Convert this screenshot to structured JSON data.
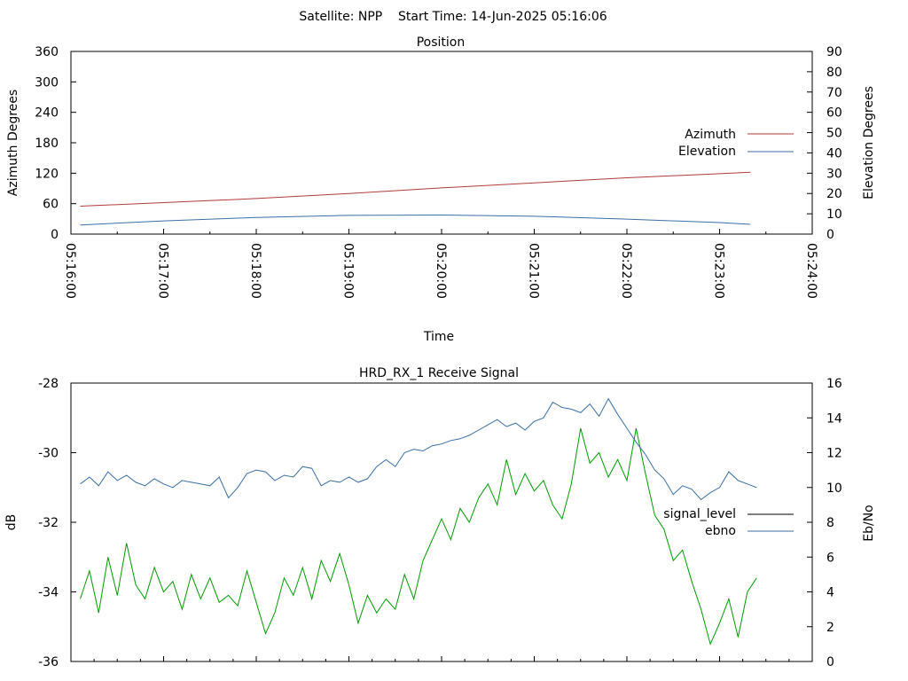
{
  "header": {
    "text": "Satellite: NPP    Start Time: 14-Jun-2025 05:16:06"
  },
  "chart_data": [
    {
      "type": "line",
      "title": "Position",
      "xlabel": "Time",
      "ylabel": "Azimuth Degrees",
      "ylabel_right": "Elevation Degrees",
      "ylim": [
        0,
        360
      ],
      "ylim_right": [
        0,
        90
      ],
      "yticks": [
        "360",
        "300",
        "240",
        "180",
        "120",
        "60",
        "0"
      ],
      "yticks_right": [
        "90",
        "80",
        "70",
        "60",
        "50",
        "40",
        "30",
        "20",
        "10",
        "0"
      ],
      "xlim": [
        "05:16:00",
        "05:24:00"
      ],
      "xticks": [
        "05:16:00",
        "05:17:00",
        "05:18:00",
        "05:19:00",
        "05:20:00",
        "05:21:00",
        "05:22:00",
        "05:23:00",
        "05:24:00"
      ],
      "legend_position": "right",
      "grid": false,
      "series": [
        {
          "name": "Azimuth",
          "axis": "left",
          "color": "#b03a3a",
          "x": [
            "05:16:06",
            "05:17:00",
            "05:18:00",
            "05:19:00",
            "05:20:00",
            "05:21:00",
            "05:22:00",
            "05:23:00",
            "05:23:20"
          ],
          "values": [
            55,
            62,
            70,
            80,
            91,
            101,
            111,
            119,
            122
          ]
        },
        {
          "name": "Elevation",
          "axis": "right",
          "color": "#3a6ea5",
          "x": [
            "05:16:06",
            "05:17:00",
            "05:18:00",
            "05:19:00",
            "05:20:00",
            "05:21:00",
            "05:22:00",
            "05:23:00",
            "05:23:20"
          ],
          "values": [
            4.5,
            6.5,
            8.2,
            9.2,
            9.4,
            8.8,
            7.4,
            5.7,
            4.8
          ]
        }
      ]
    },
    {
      "type": "line",
      "title": "HRD_RX_1 Receive Signal",
      "xlabel": "",
      "ylabel": "dB",
      "ylabel_right": "Eb/No",
      "ylim": [
        -36,
        -28
      ],
      "ylim_right": [
        0,
        16
      ],
      "yticks": [
        "-28",
        "-30",
        "-32",
        "-34",
        "-36"
      ],
      "yticks_right": [
        "16",
        "14",
        "12",
        "10",
        "8",
        "6",
        "4",
        "2",
        "0"
      ],
      "xlim": [
        "05:16:00",
        "05:24:00"
      ],
      "legend_position": "right",
      "grid": false,
      "series": [
        {
          "name": "signal_level",
          "axis": "left",
          "color": "#009a00",
          "legend_color": "#000000",
          "x": [
            "05:16:06",
            "05:16:12",
            "05:16:18",
            "05:16:24",
            "05:16:30",
            "05:16:36",
            "05:16:42",
            "05:16:48",
            "05:16:54",
            "05:17:00",
            "05:17:06",
            "05:17:12",
            "05:17:18",
            "05:17:24",
            "05:17:30",
            "05:17:36",
            "05:17:42",
            "05:17:48",
            "05:17:54",
            "05:18:00",
            "05:18:06",
            "05:18:12",
            "05:18:18",
            "05:18:24",
            "05:18:30",
            "05:18:36",
            "05:18:42",
            "05:18:48",
            "05:18:54",
            "05:19:00",
            "05:19:06",
            "05:19:12",
            "05:19:18",
            "05:19:24",
            "05:19:30",
            "05:19:36",
            "05:19:42",
            "05:19:48",
            "05:19:54",
            "05:20:00",
            "05:20:06",
            "05:20:12",
            "05:20:18",
            "05:20:24",
            "05:20:30",
            "05:20:36",
            "05:20:42",
            "05:20:48",
            "05:20:54",
            "05:21:00",
            "05:21:06",
            "05:21:12",
            "05:21:18",
            "05:21:24",
            "05:21:30",
            "05:21:36",
            "05:21:42",
            "05:21:48",
            "05:21:54",
            "05:22:00",
            "05:22:06",
            "05:22:12",
            "05:22:18",
            "05:22:24",
            "05:22:30",
            "05:22:36",
            "05:22:42",
            "05:22:48",
            "05:22:54",
            "05:23:00",
            "05:23:06",
            "05:23:12",
            "05:23:18",
            "05:23:24"
          ],
          "values": [
            -34.2,
            -33.4,
            -34.6,
            -33.0,
            -34.1,
            -32.6,
            -33.8,
            -34.2,
            -33.3,
            -34.0,
            -33.7,
            -34.5,
            -33.5,
            -34.2,
            -33.6,
            -34.3,
            -34.1,
            -34.4,
            -33.4,
            -34.3,
            -35.2,
            -34.6,
            -33.6,
            -34.1,
            -33.3,
            -34.2,
            -33.1,
            -33.7,
            -32.9,
            -33.8,
            -34.9,
            -34.1,
            -34.6,
            -34.2,
            -34.5,
            -33.5,
            -34.2,
            -33.1,
            -32.5,
            -31.9,
            -32.5,
            -31.6,
            -32.0,
            -31.3,
            -30.9,
            -31.5,
            -30.2,
            -31.2,
            -30.6,
            -31.1,
            -30.8,
            -31.5,
            -31.9,
            -30.9,
            -29.3,
            -30.3,
            -30.0,
            -30.7,
            -30.2,
            -30.8,
            -29.3,
            -30.6,
            -31.8,
            -32.2,
            -33.1,
            -32.8,
            -33.7,
            -34.5,
            -35.5,
            -34.9,
            -34.2,
            -35.3,
            -34.0,
            -33.6
          ]
        },
        {
          "name": "ebno",
          "axis": "right",
          "color": "#3a6ea5",
          "x": [
            "05:16:06",
            "05:16:12",
            "05:16:18",
            "05:16:24",
            "05:16:30",
            "05:16:36",
            "05:16:42",
            "05:16:48",
            "05:16:54",
            "05:17:00",
            "05:17:06",
            "05:17:12",
            "05:17:18",
            "05:17:24",
            "05:17:30",
            "05:17:36",
            "05:17:42",
            "05:17:48",
            "05:17:54",
            "05:18:00",
            "05:18:06",
            "05:18:12",
            "05:18:18",
            "05:18:24",
            "05:18:30",
            "05:18:36",
            "05:18:42",
            "05:18:48",
            "05:18:54",
            "05:19:00",
            "05:19:06",
            "05:19:12",
            "05:19:18",
            "05:19:24",
            "05:19:30",
            "05:19:36",
            "05:19:42",
            "05:19:48",
            "05:19:54",
            "05:20:00",
            "05:20:06",
            "05:20:12",
            "05:20:18",
            "05:20:24",
            "05:20:30",
            "05:20:36",
            "05:20:42",
            "05:20:48",
            "05:20:54",
            "05:21:00",
            "05:21:06",
            "05:21:12",
            "05:21:18",
            "05:21:24",
            "05:21:30",
            "05:21:36",
            "05:21:42",
            "05:21:48",
            "05:21:54",
            "05:22:00",
            "05:22:06",
            "05:22:12",
            "05:22:18",
            "05:22:24",
            "05:22:30",
            "05:22:36",
            "05:22:42",
            "05:22:48",
            "05:22:54",
            "05:23:00",
            "05:23:06",
            "05:23:12",
            "05:23:18",
            "05:23:24"
          ],
          "values": [
            10.2,
            10.6,
            10.1,
            10.9,
            10.4,
            10.7,
            10.3,
            10.1,
            10.5,
            10.2,
            10.0,
            10.4,
            10.3,
            10.2,
            10.1,
            10.6,
            9.4,
            10.0,
            10.8,
            11.0,
            10.9,
            10.4,
            10.7,
            10.6,
            11.2,
            11.1,
            10.1,
            10.4,
            10.3,
            10.6,
            10.3,
            10.5,
            11.2,
            11.6,
            11.2,
            12.0,
            12.2,
            12.1,
            12.4,
            12.5,
            12.7,
            12.8,
            13.0,
            13.3,
            13.6,
            13.9,
            13.5,
            13.7,
            13.3,
            13.8,
            14.0,
            14.9,
            14.6,
            14.5,
            14.3,
            14.8,
            14.1,
            15.1,
            14.2,
            13.4,
            12.6,
            11.9,
            11.0,
            10.5,
            9.6,
            10.1,
            9.9,
            9.3,
            9.7,
            10.0,
            10.9,
            10.4,
            10.2,
            10.0
          ]
        }
      ]
    }
  ]
}
